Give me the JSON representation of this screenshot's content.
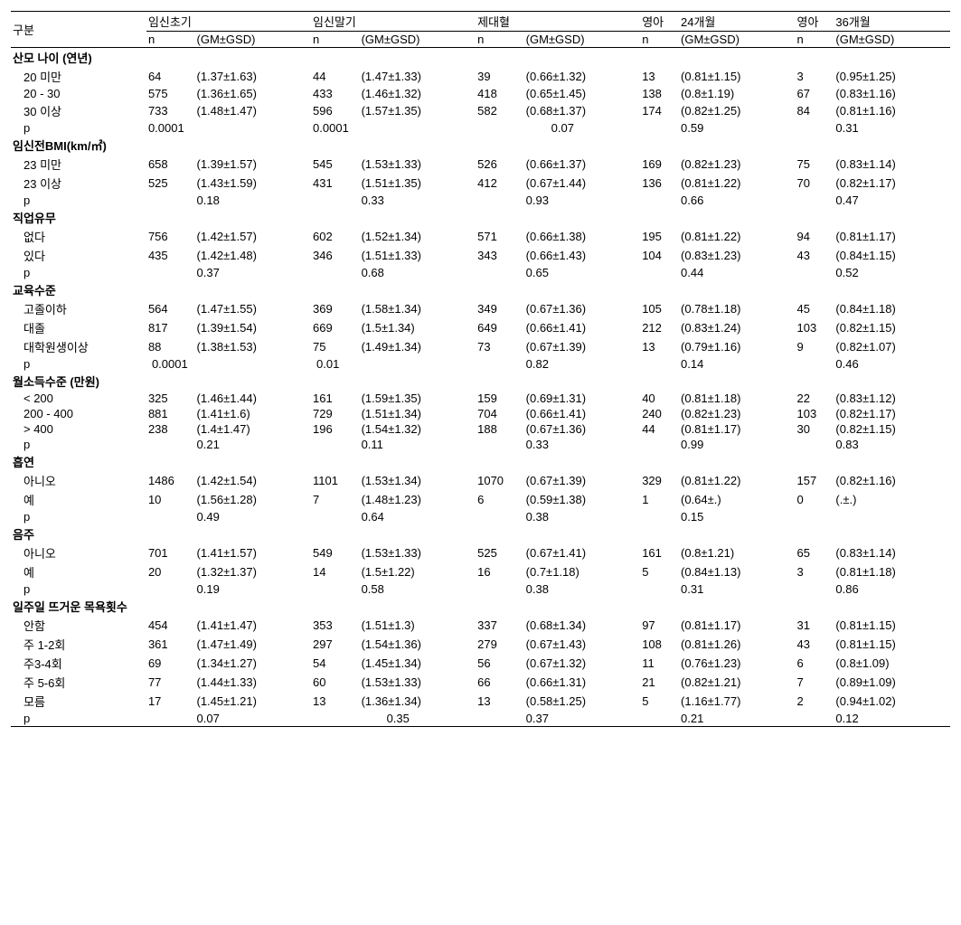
{
  "headers": {
    "rowLabel": "구분",
    "groups": [
      "임신초기",
      "임신말기",
      "제대혈",
      "24개월",
      "36개월"
    ],
    "infantPrefix": "영아",
    "subN": "n",
    "subGM": "(GM±GSD)"
  },
  "sections": [
    {
      "title": "산모 나이 (연년)",
      "rows": [
        {
          "label": "20 미만",
          "cells": [
            [
              "64",
              "(1.37±1.63)"
            ],
            [
              "44",
              "(1.47±1.33)"
            ],
            [
              "39",
              "(0.66±1.32)"
            ],
            [
              "13",
              "(0.81±1.15)"
            ],
            [
              "3",
              "(0.95±1.25)"
            ]
          ]
        },
        {
          "label": "20 - 30",
          "cells": [
            [
              "575",
              "(1.36±1.65)"
            ],
            [
              "433",
              "(1.46±1.32)"
            ],
            [
              "418",
              "(0.65±1.45)"
            ],
            [
              "138",
              "(0.8±1.19)"
            ],
            [
              "67",
              "(0.83±1.16)"
            ]
          ]
        },
        {
          "label": "30 이상",
          "cells": [
            [
              "733",
              "(1.48±1.47)"
            ],
            [
              "596",
              "(1.57±1.35)"
            ],
            [
              "582",
              "(0.68±1.37)"
            ],
            [
              "174",
              "(0.82±1.25)"
            ],
            [
              "84",
              "(0.81±1.16)"
            ]
          ]
        }
      ],
      "p": [
        "0.0001",
        "0.0001",
        "0.07",
        "0.59",
        "0.31"
      ],
      "pPositions": [
        "n",
        "n",
        "gm-right",
        "gm",
        "gm"
      ]
    },
    {
      "title": "임신전BMI(km/㎡)",
      "rows": [
        {
          "label": "23 미만",
          "cells": [
            [
              "658",
              "(1.39±1.57)"
            ],
            [
              "545",
              "(1.53±1.33)"
            ],
            [
              "526",
              "(0.66±1.37)"
            ],
            [
              "169",
              "(0.82±1.23)"
            ],
            [
              "75",
              "(0.83±1.14)"
            ]
          ]
        },
        {
          "label": "23 이상",
          "cells": [
            [
              "525",
              "(1.43±1.59)"
            ],
            [
              "431",
              "(1.51±1.35)"
            ],
            [
              "412",
              "(0.67±1.44)"
            ],
            [
              "136",
              "(0.81±1.22)"
            ],
            [
              "70",
              "(0.82±1.17)"
            ]
          ]
        }
      ],
      "p": [
        "0.18",
        "0.33",
        "0.93",
        "0.66",
        "0.47"
      ],
      "pPositions": [
        "gm",
        "gm",
        "gm",
        "gm",
        "gm"
      ]
    },
    {
      "title": "직업유무",
      "rows": [
        {
          "label": "없다",
          "cells": [
            [
              "756",
              "(1.42±1.57)"
            ],
            [
              "602",
              "(1.52±1.34)"
            ],
            [
              "571",
              "(0.66±1.38)"
            ],
            [
              "195",
              "(0.81±1.22)"
            ],
            [
              "94",
              "(0.81±1.17)"
            ]
          ]
        },
        {
          "label": "있다",
          "cells": [
            [
              "435",
              "(1.42±1.48)"
            ],
            [
              "346",
              "(1.51±1.33)"
            ],
            [
              "343",
              "(0.66±1.43)"
            ],
            [
              "104",
              "(0.83±1.23)"
            ],
            [
              "43",
              "(0.84±1.15)"
            ]
          ]
        }
      ],
      "p": [
        "0.37",
        "0.68",
        "0.65",
        "0.44",
        "0.52"
      ],
      "pPositions": [
        "gm",
        "gm",
        "gm",
        "gm",
        "gm"
      ]
    },
    {
      "title": "교육수준",
      "rows": [
        {
          "label": "고졸이하",
          "cells": [
            [
              "564",
              "(1.47±1.55)"
            ],
            [
              "369",
              "(1.58±1.34)"
            ],
            [
              "349",
              "(0.67±1.36)"
            ],
            [
              "105",
              "(0.78±1.18)"
            ],
            [
              "45",
              "(0.84±1.18)"
            ]
          ]
        },
        {
          "label": "대졸",
          "cells": [
            [
              "817",
              "(1.39±1.54)"
            ],
            [
              "669",
              "(1.5±1.34)"
            ],
            [
              "649",
              "(0.66±1.41)"
            ],
            [
              "212",
              "(0.83±1.24)"
            ],
            [
              "103",
              "(0.82±1.15)"
            ]
          ]
        },
        {
          "label": "대학원생이상",
          "cells": [
            [
              "88",
              "(1.38±1.53)"
            ],
            [
              "75",
              "(1.49±1.34)"
            ],
            [
              "73",
              "(0.67±1.39)"
            ],
            [
              "13",
              "(0.79±1.16)"
            ],
            [
              "9",
              "(0.82±1.07)"
            ]
          ]
        }
      ],
      "p": [
        "0.0001",
        "0.01",
        "0.82",
        "0.14",
        "0.46"
      ],
      "pPositions": [
        "n-right",
        "n-right",
        "gm",
        "gm",
        "gm"
      ]
    },
    {
      "title": "월소득수준 (만원)",
      "rows": [
        {
          "label": "< 200",
          "cells": [
            [
              "325",
              "(1.46±1.44)"
            ],
            [
              "161",
              "(1.59±1.35)"
            ],
            [
              "159",
              "(0.69±1.31)"
            ],
            [
              "40",
              "(0.81±1.18)"
            ],
            [
              "22",
              "(0.83±1.12)"
            ]
          ]
        },
        {
          "label": "200 - 400",
          "cells": [
            [
              "881",
              "(1.41±1.6)"
            ],
            [
              "729",
              "(1.51±1.34)"
            ],
            [
              "704",
              "(0.66±1.41)"
            ],
            [
              "240",
              "(0.82±1.23)"
            ],
            [
              "103",
              "(0.82±1.17)"
            ]
          ]
        },
        {
          "label": "> 400",
          "cells": [
            [
              "238",
              "(1.4±1.47)"
            ],
            [
              "196",
              "(1.54±1.32)"
            ],
            [
              "188",
              "(0.67±1.36)"
            ],
            [
              "44",
              "(0.81±1.17)"
            ],
            [
              "30",
              "(0.82±1.15)"
            ]
          ]
        }
      ],
      "p": [
        "0.21",
        "0.11",
        "0.33",
        "0.99",
        "0.83"
      ],
      "pPositions": [
        "gm",
        "gm",
        "gm",
        "gm",
        "gm"
      ]
    },
    {
      "title": "흡연",
      "rows": [
        {
          "label": "아니오",
          "cells": [
            [
              "1486",
              "(1.42±1.54)"
            ],
            [
              "1101",
              "(1.53±1.34)"
            ],
            [
              "1070",
              "(0.67±1.39)"
            ],
            [
              "329",
              "(0.81±1.22)"
            ],
            [
              "157",
              "(0.82±1.16)"
            ]
          ]
        },
        {
          "label": "예",
          "cells": [
            [
              "10",
              "(1.56±1.28)"
            ],
            [
              "7",
              "(1.48±1.23)"
            ],
            [
              "6",
              "(0.59±1.38)"
            ],
            [
              "1",
              "(0.64±.)"
            ],
            [
              "0",
              "(.±.)"
            ]
          ]
        }
      ],
      "p": [
        "0.49",
        "0.64",
        "0.38",
        "0.15",
        ""
      ],
      "pPositions": [
        "gm",
        "gm",
        "gm",
        "gm",
        "gm"
      ]
    },
    {
      "title": "음주",
      "rows": [
        {
          "label": "아니오",
          "cells": [
            [
              "701",
              "(1.41±1.57)"
            ],
            [
              "549",
              "(1.53±1.33)"
            ],
            [
              "525",
              "(0.67±1.41)"
            ],
            [
              "161",
              "(0.8±1.21)"
            ],
            [
              "65",
              "(0.83±1.14)"
            ]
          ]
        },
        {
          "label": "예",
          "cells": [
            [
              "20",
              "(1.32±1.37)"
            ],
            [
              "14",
              "(1.5±1.22)"
            ],
            [
              "16",
              "(0.7±1.18)"
            ],
            [
              "5",
              "(0.84±1.13)"
            ],
            [
              "3",
              "(0.81±1.18)"
            ]
          ]
        }
      ],
      "p": [
        "0.19",
        "0.58",
        "0.38",
        "0.31",
        "0.86"
      ],
      "pPositions": [
        "gm",
        "gm",
        "gm",
        "gm",
        "gm"
      ]
    },
    {
      "title": "일주일 뜨거운 목욕횟수",
      "rows": [
        {
          "label": "안함",
          "cells": [
            [
              "454",
              "(1.41±1.47)"
            ],
            [
              "353",
              "(1.51±1.3)"
            ],
            [
              "337",
              "(0.68±1.34)"
            ],
            [
              "97",
              "(0.81±1.17)"
            ],
            [
              "31",
              "(0.81±1.15)"
            ]
          ]
        },
        {
          "label": "주 1-2회",
          "cells": [
            [
              "361",
              "(1.47±1.49)"
            ],
            [
              "297",
              "(1.54±1.36)"
            ],
            [
              "279",
              "(0.67±1.43)"
            ],
            [
              "108",
              "(0.81±1.26)"
            ],
            [
              "43",
              "(0.81±1.15)"
            ]
          ]
        },
        {
          "label": "주3-4회",
          "cells": [
            [
              "69",
              "(1.34±1.27)"
            ],
            [
              "54",
              "(1.45±1.34)"
            ],
            [
              "56",
              "(0.67±1.32)"
            ],
            [
              "11",
              "(0.76±1.23)"
            ],
            [
              "6",
              "(0.8±1.09)"
            ]
          ]
        },
        {
          "label": "주 5-6회",
          "cells": [
            [
              "77",
              "(1.44±1.33)"
            ],
            [
              "60",
              "(1.53±1.33)"
            ],
            [
              "66",
              "(0.66±1.31)"
            ],
            [
              "21",
              "(0.82±1.21)"
            ],
            [
              "7",
              "(0.89±1.09)"
            ]
          ]
        },
        {
          "label": "모름",
          "cells": [
            [
              "17",
              "(1.45±1.21)"
            ],
            [
              "13",
              "(1.36±1.34)"
            ],
            [
              "13",
              "(0.58±1.25)"
            ],
            [
              "5",
              "(1.16±1.77)"
            ],
            [
              "2",
              "(0.94±1.02)"
            ]
          ]
        }
      ],
      "p": [
        "0.07",
        "0.35",
        "0.37",
        "0.21",
        "0.12"
      ],
      "pPositions": [
        "gm",
        "gm-right",
        "gm",
        "gm",
        "gm"
      ],
      "last": true
    }
  ],
  "pLabel": "p"
}
